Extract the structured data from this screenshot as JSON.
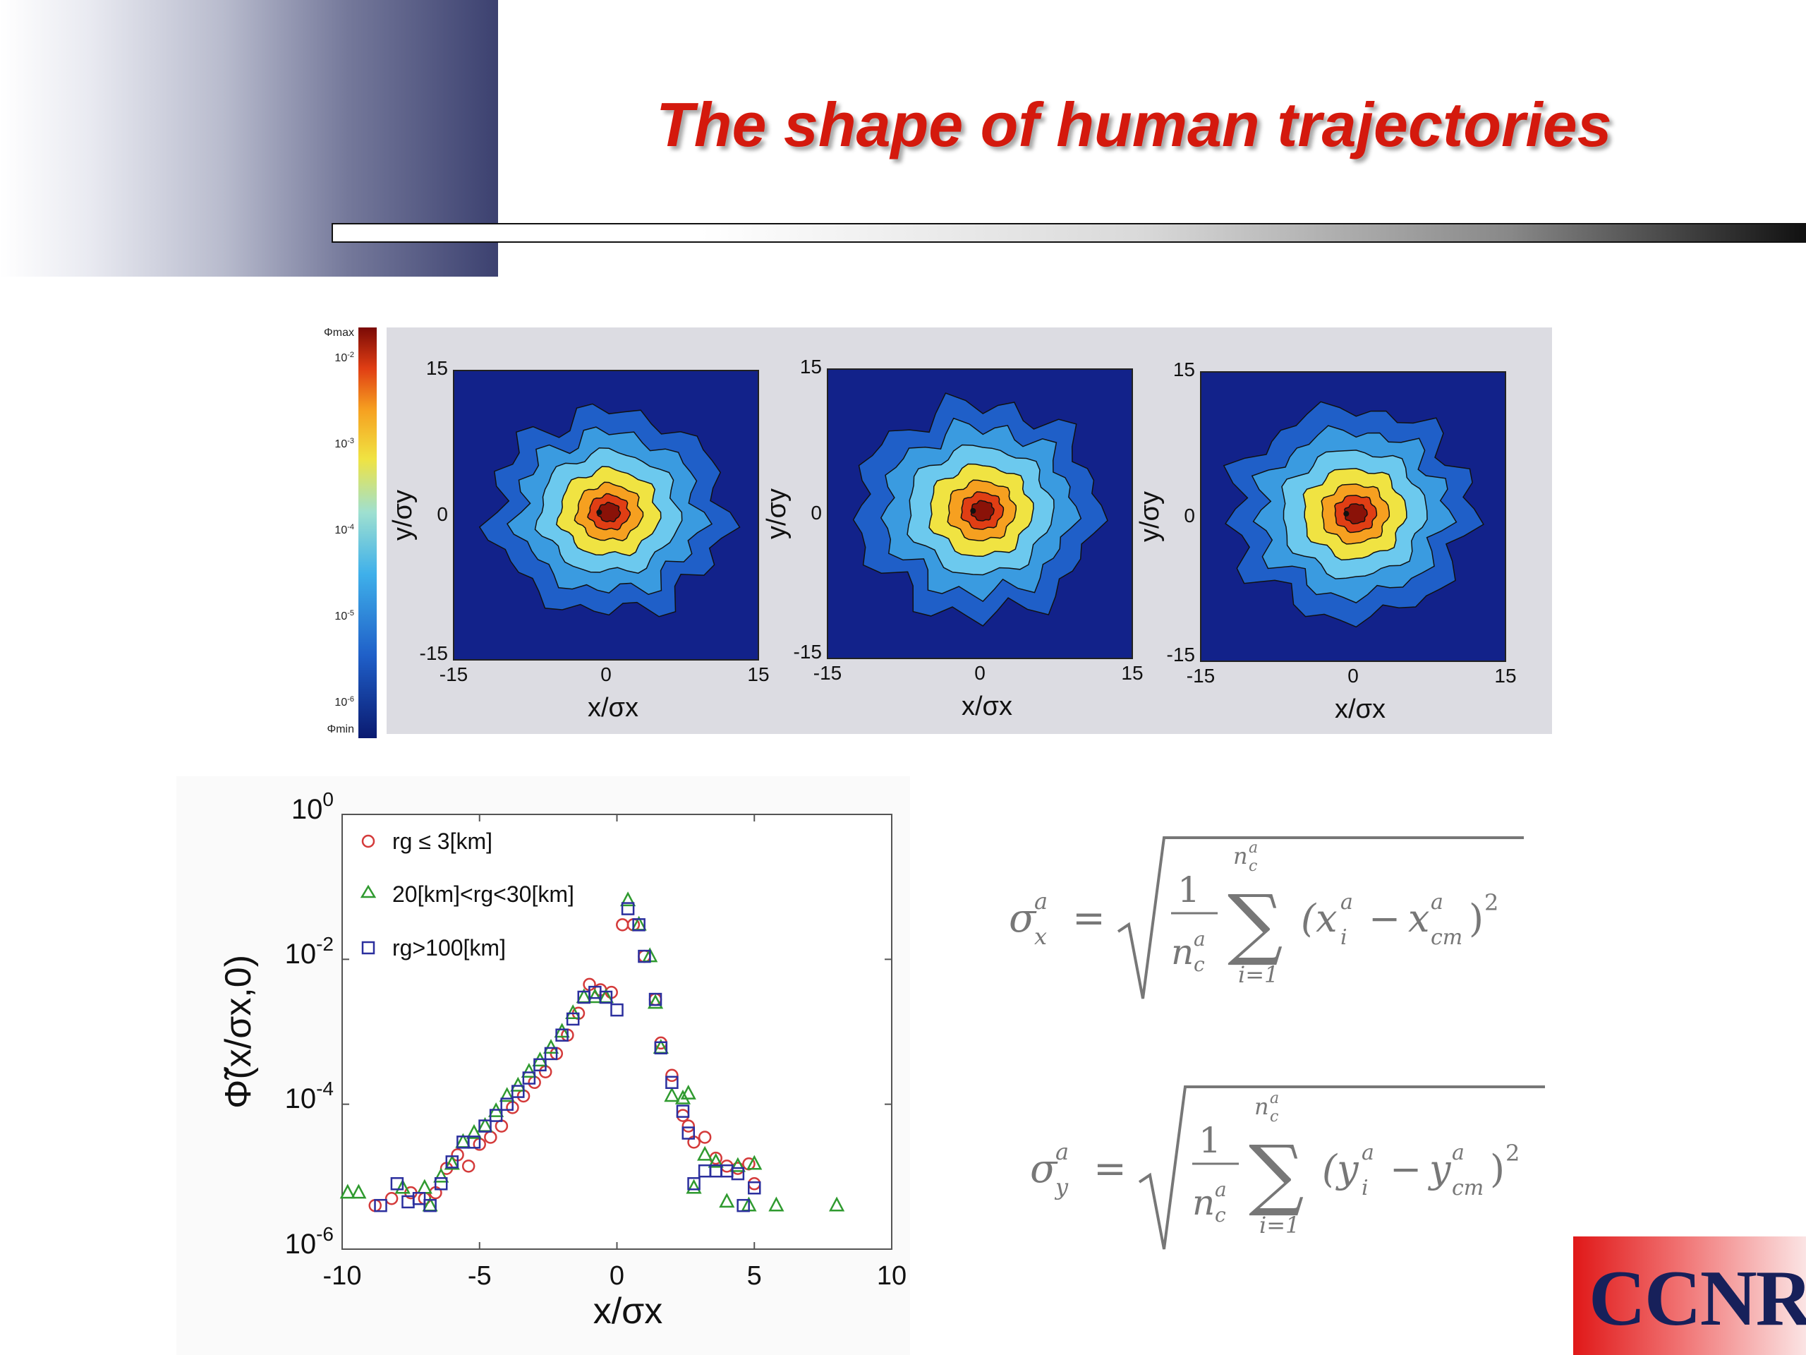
{
  "title": "The shape of human trajectories",
  "colorbar": {
    "max_label": "Φmax",
    "min_label": "Φmin",
    "ticks": [
      {
        "base": "10",
        "exp": "-2"
      },
      {
        "base": "10",
        "exp": "-3"
      },
      {
        "base": "10",
        "exp": "-4"
      },
      {
        "base": "10",
        "exp": "-5"
      },
      {
        "base": "10",
        "exp": "-6"
      }
    ]
  },
  "heatmaps": [
    {
      "xlabel": "x/σx",
      "ylabel": "y/σy",
      "xticks": [
        "-15",
        "0",
        "15"
      ],
      "yticks": [
        "15",
        "0",
        "-15"
      ],
      "skew": 0.0
    },
    {
      "xlabel": "x/σx",
      "ylabel": "y/σy",
      "xticks": [
        "-15",
        "0",
        "15"
      ],
      "yticks": [
        "15",
        "0",
        "-15"
      ],
      "skew": 0.35
    },
    {
      "xlabel": "x/σx",
      "ylabel": "y/σy",
      "xticks": [
        "-15",
        "0",
        "15"
      ],
      "yticks": [
        "15",
        "0",
        "-15"
      ],
      "skew": 0.3
    }
  ],
  "colors": {
    "title": "#d4190d",
    "circle_series": "#d43a3a",
    "triangle_series": "#2f9a2f",
    "square_series": "#2b2f9e",
    "heatmap_levels": [
      "#12228a",
      "#1f5fc8",
      "#3a9be0",
      "#6cc9ee",
      "#f0e342",
      "#f6a020",
      "#e03e14",
      "#8a1208"
    ]
  },
  "chart_data": {
    "type": "scatter",
    "xlabel": "x/σx",
    "ylabel": "Φ̃(x/σx,0)",
    "xlim": [
      -10,
      10
    ],
    "ylim": [
      1e-06,
      1
    ],
    "yscale": "log",
    "xticks": [
      "-10",
      "-5",
      "0",
      "5",
      "10"
    ],
    "yticks": [
      {
        "base": "10",
        "exp": "0"
      },
      {
        "base": "10",
        "exp": "-2"
      },
      {
        "base": "10",
        "exp": "-4"
      },
      {
        "base": "10",
        "exp": "-6"
      }
    ],
    "legend_position": "top-left",
    "series": [
      {
        "name": "rg ≤ 3[km]",
        "marker": "circle",
        "points": [
          [
            -8.8,
            4e-06
          ],
          [
            -8.2,
            5e-06
          ],
          [
            -7.5,
            6e-06
          ],
          [
            -7.0,
            5e-06
          ],
          [
            -6.6,
            6e-06
          ],
          [
            -6.2,
            1.3e-05
          ],
          [
            -5.8,
            2e-05
          ],
          [
            -5.4,
            1.4e-05
          ],
          [
            -5.0,
            2.8e-05
          ],
          [
            -4.6,
            3.5e-05
          ],
          [
            -4.2,
            5e-05
          ],
          [
            -3.8,
            9e-05
          ],
          [
            -3.4,
            0.00013
          ],
          [
            -3.0,
            0.0002
          ],
          [
            -2.6,
            0.00028
          ],
          [
            -2.2,
            0.0005
          ],
          [
            -1.8,
            0.0009
          ],
          [
            -1.4,
            0.0018
          ],
          [
            -1.0,
            0.0045
          ],
          [
            -0.6,
            0.0038
          ],
          [
            -0.2,
            0.0035
          ],
          [
            0.2,
            0.03
          ],
          [
            0.6,
            0.03
          ],
          [
            1.0,
            0.011
          ],
          [
            1.4,
            0.0028
          ],
          [
            1.6,
            0.0007
          ],
          [
            2.0,
            0.00025
          ],
          [
            2.4,
            7e-05
          ],
          [
            2.6,
            5e-05
          ],
          [
            2.8,
            3e-05
          ],
          [
            3.2,
            3.5e-05
          ],
          [
            3.6,
            1.8e-05
          ],
          [
            4.0,
            1.4e-05
          ],
          [
            4.4,
            1.3e-05
          ],
          [
            4.8,
            1.5e-05
          ],
          [
            5.0,
            8e-06
          ]
        ]
      },
      {
        "name": "20[km]<rg<30[km]",
        "marker": "triangle",
        "points": [
          [
            -9.8,
            6e-06
          ],
          [
            -9.4,
            6e-06
          ],
          [
            -7.8,
            7e-06
          ],
          [
            -7.0,
            7e-06
          ],
          [
            -6.8,
            4e-06
          ],
          [
            -6.4,
            1e-05
          ],
          [
            -6.0,
            1.5e-05
          ],
          [
            -5.6,
            3e-05
          ],
          [
            -5.2,
            4e-05
          ],
          [
            -4.8,
            5e-05
          ],
          [
            -4.4,
            8e-05
          ],
          [
            -4.0,
            0.00013
          ],
          [
            -3.6,
            0.00018
          ],
          [
            -3.2,
            0.00028
          ],
          [
            -2.8,
            0.0004
          ],
          [
            -2.4,
            0.0006
          ],
          [
            -2.0,
            0.001
          ],
          [
            -1.6,
            0.0018
          ],
          [
            -1.2,
            0.003
          ],
          [
            -0.8,
            0.003
          ],
          [
            -0.4,
            0.003
          ],
          [
            0.4,
            0.065
          ],
          [
            0.8,
            0.03
          ],
          [
            1.2,
            0.011
          ],
          [
            1.4,
            0.0025
          ],
          [
            1.6,
            0.0006
          ],
          [
            2.0,
            0.00013
          ],
          [
            2.4,
            0.00012
          ],
          [
            2.6,
            0.00014
          ],
          [
            2.8,
            7e-06
          ],
          [
            3.2,
            2e-05
          ],
          [
            3.6,
            1.6e-05
          ],
          [
            4.0,
            4.5e-06
          ],
          [
            4.4,
            1.4e-05
          ],
          [
            4.8,
            4e-06
          ],
          [
            5.0,
            1.5e-05
          ],
          [
            5.8,
            4e-06
          ],
          [
            8.0,
            4e-06
          ]
        ]
      },
      {
        "name": "rg>100[km]",
        "marker": "square",
        "points": [
          [
            -8.6,
            4e-06
          ],
          [
            -8.0,
            8e-06
          ],
          [
            -7.6,
            4.5e-06
          ],
          [
            -7.2,
            5e-06
          ],
          [
            -6.8,
            4e-06
          ],
          [
            -6.4,
            8e-06
          ],
          [
            -6.0,
            1.6e-05
          ],
          [
            -5.6,
            3e-05
          ],
          [
            -5.2,
            3e-05
          ],
          [
            -4.8,
            5e-05
          ],
          [
            -4.4,
            7e-05
          ],
          [
            -4.0,
            0.0001
          ],
          [
            -3.6,
            0.00015
          ],
          [
            -3.2,
            0.00023
          ],
          [
            -2.8,
            0.00035
          ],
          [
            -2.4,
            0.0005
          ],
          [
            -2.0,
            0.0009
          ],
          [
            -1.6,
            0.0015
          ],
          [
            -1.2,
            0.003
          ],
          [
            -0.8,
            0.0035
          ],
          [
            -0.4,
            0.003
          ],
          [
            0.0,
            0.002
          ],
          [
            0.4,
            0.05
          ],
          [
            0.8,
            0.03
          ],
          [
            1.0,
            0.011
          ],
          [
            1.4,
            0.0028
          ],
          [
            1.6,
            0.0006
          ],
          [
            2.0,
            0.0002
          ],
          [
            2.4,
            8e-05
          ],
          [
            2.6,
            4e-05
          ],
          [
            2.8,
            8e-06
          ],
          [
            3.2,
            1.2e-05
          ],
          [
            3.6,
            1.2e-05
          ],
          [
            4.0,
            1.2e-05
          ],
          [
            4.4,
            1.1e-05
          ],
          [
            4.6,
            4e-06
          ],
          [
            5.0,
            7e-06
          ]
        ]
      }
    ]
  },
  "formulas": {
    "sigma_x": {
      "lhs": "σ",
      "lhs_sup": "a",
      "lhs_sub": "x",
      "frac_num": "1",
      "frac_den": "n",
      "den_sup": "a",
      "den_sub": "c",
      "sum_top": "n",
      "sum_top_sup": "a",
      "sum_top_sub": "c",
      "sum_bottom": "i=1",
      "term": "(x",
      "term_sup": "a",
      "term_sub": "i",
      "minus": "−",
      "term2": "x",
      "term2_sup": "a",
      "term2_sub": "cm",
      "close": ")",
      "power": "2"
    },
    "sigma_y": {
      "lhs": "σ",
      "lhs_sup": "a",
      "lhs_sub": "y",
      "frac_num": "1",
      "frac_den": "n",
      "den_sup": "a",
      "den_sub": "c",
      "sum_top": "n",
      "sum_top_sup": "a",
      "sum_top_sub": "c",
      "sum_bottom": "i=1",
      "term": "(y",
      "term_sup": "a",
      "term_sub": "i",
      "minus": "−",
      "term2": "y",
      "term2_sup": "a",
      "term2_sub": "cm",
      "close": ")",
      "power": "2"
    }
  },
  "logo": {
    "text": "CCNR"
  }
}
